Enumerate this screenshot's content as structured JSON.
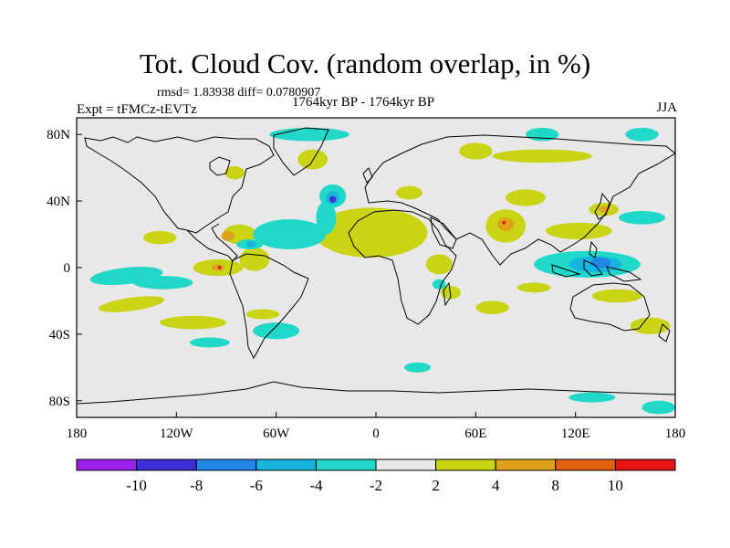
{
  "header": {
    "title": "Tot. Cloud Cov. (random overlap, in %)",
    "stats": "rmsd= 1.83938 diff= 0.0780907",
    "experiment": "Expt = tFMCz-tEVTz",
    "period": "1764kyr BP - 1764kyr BP",
    "season": "JJA"
  },
  "chart_data": {
    "type": "heatmap",
    "title": "Tot. Cloud Cov. (random overlap, in %)",
    "projection": "cylindrical equidistant",
    "xlim": [
      -180,
      180
    ],
    "ylim": [
      -90,
      90
    ],
    "x_ticks": [
      {
        "value": -180,
        "label": "180"
      },
      {
        "value": -120,
        "label": "120W"
      },
      {
        "value": -60,
        "label": "60W"
      },
      {
        "value": 0,
        "label": "0"
      },
      {
        "value": 60,
        "label": "60E"
      },
      {
        "value": 120,
        "label": "120E"
      },
      {
        "value": 180,
        "label": "180"
      }
    ],
    "y_ticks": [
      {
        "value": 80,
        "label": "80N"
      },
      {
        "value": 40,
        "label": "40N"
      },
      {
        "value": 0,
        "label": "0"
      },
      {
        "value": -40,
        "label": "40S"
      },
      {
        "value": -80,
        "label": "80S"
      }
    ],
    "colorbar": {
      "levels": [
        -10,
        -8,
        -6,
        -4,
        -2,
        2,
        4,
        8,
        10
      ],
      "colors": [
        "#9a1fe8",
        "#3a2fd8",
        "#1f86e6",
        "#18b4e0",
        "#1fd8c8",
        "#e8e8e8",
        "#c8d414",
        "#e0a21a",
        "#e26012",
        "#e51414"
      ],
      "labels": [
        "-10",
        "-8",
        "-6",
        "-4",
        "-2",
        "2",
        "4",
        "8",
        "10"
      ]
    },
    "features": [
      {
        "category": "4 to 8",
        "lon": -8,
        "lat": 24,
        "rx": 26,
        "ry": 10,
        "angle": 0
      },
      {
        "category": "2 to 4",
        "lon": -3,
        "lat": 21,
        "rx": 34,
        "ry": 15,
        "angle": 0
      },
      {
        "category": "2 to 4",
        "lon": 78,
        "lat": 25,
        "rx": 12,
        "ry": 10,
        "angle": 0
      },
      {
        "category": "4 to 8",
        "lon": 78,
        "lat": 26,
        "rx": 5,
        "ry": 4,
        "angle": 0
      },
      {
        "category": "> 10",
        "lon": 77,
        "lat": 27,
        "rx": 1,
        "ry": 1,
        "angle": 0
      },
      {
        "category": "2 to 4",
        "lon": -82,
        "lat": 20,
        "rx": 10,
        "ry": 6,
        "angle": 0
      },
      {
        "category": "4 to 8",
        "lon": -89,
        "lat": 19,
        "rx": 4,
        "ry": 3,
        "angle": 0
      },
      {
        "category": "2 to 4",
        "lon": -73,
        "lat": 5,
        "rx": 9,
        "ry": 7,
        "angle": 0
      },
      {
        "category": "2 to 4",
        "lon": -95,
        "lat": 0,
        "rx": 15,
        "ry": 5,
        "angle": 0
      },
      {
        "category": "4 to 8",
        "lon": -95,
        "lat": 0,
        "rx": 4,
        "ry": 2,
        "angle": 0
      },
      {
        "category": "> 10",
        "lon": -94,
        "lat": 0,
        "rx": 1,
        "ry": 1,
        "angle": 0
      },
      {
        "category": "2 to 4",
        "lon": -130,
        "lat": 18,
        "rx": 10,
        "ry": 4,
        "angle": 0
      },
      {
        "category": "2 to 4",
        "lon": 122,
        "lat": 22,
        "rx": 20,
        "ry": 5,
        "angle": 0
      },
      {
        "category": "2 to 4",
        "lon": 145,
        "lat": -17,
        "rx": 15,
        "ry": 4,
        "angle": 0
      },
      {
        "category": "2 to 4",
        "lon": -147,
        "lat": -22,
        "rx": 20,
        "ry": 4,
        "angle": -8
      },
      {
        "category": "2 to 4",
        "lon": -110,
        "lat": -33,
        "rx": 20,
        "ry": 4,
        "angle": 0
      },
      {
        "category": "2 to 4",
        "lon": -68,
        "lat": -28,
        "rx": 10,
        "ry": 3,
        "angle": 0
      },
      {
        "category": "2 to 4",
        "lon": -38,
        "lat": 65,
        "rx": 9,
        "ry": 6,
        "angle": 0
      },
      {
        "category": "2 to 4",
        "lon": 60,
        "lat": 70,
        "rx": 10,
        "ry": 5,
        "angle": 0
      },
      {
        "category": "2 to 4",
        "lon": 100,
        "lat": 67,
        "rx": 30,
        "ry": 4,
        "angle": 0
      },
      {
        "category": "2 to 4",
        "lon": 90,
        "lat": 42,
        "rx": 12,
        "ry": 5,
        "angle": 0
      },
      {
        "category": "2 to 4",
        "lon": 137,
        "lat": 35,
        "rx": 9,
        "ry": 4,
        "angle": 0
      },
      {
        "category": "4 to 8",
        "lon": 137,
        "lat": 35,
        "rx": 3,
        "ry": 2,
        "angle": 0
      },
      {
        "category": "2 to 4",
        "lon": 45,
        "lat": -15,
        "rx": 6,
        "ry": 4,
        "angle": 0
      },
      {
        "category": "2 to 4",
        "lon": 38,
        "lat": 2,
        "rx": 8,
        "ry": 6,
        "angle": 0
      },
      {
        "category": "2 to 4",
        "lon": 70,
        "lat": -24,
        "rx": 10,
        "ry": 4,
        "angle": 0
      },
      {
        "category": "2 to 4",
        "lon": 95,
        "lat": -12,
        "rx": 10,
        "ry": 3,
        "angle": 0
      },
      {
        "category": "2 to 4",
        "lon": -85,
        "lat": 57,
        "rx": 6,
        "ry": 4,
        "angle": 0
      },
      {
        "category": "2 to 4",
        "lon": 20,
        "lat": 45,
        "rx": 8,
        "ry": 4,
        "angle": 0
      },
      {
        "category": "2 to 4",
        "lon": 165,
        "lat": -35,
        "rx": 12,
        "ry": 5,
        "angle": 0
      },
      {
        "category": "-4 to -2",
        "lon": 127,
        "lat": 2,
        "rx": 32,
        "ry": 8,
        "angle": 0
      },
      {
        "category": "-6 to -4",
        "lon": 132,
        "lat": 2,
        "rx": 16,
        "ry": 5,
        "angle": 0
      },
      {
        "category": "-8 to -6",
        "lon": 135,
        "lat": 3,
        "rx": 6,
        "ry": 3,
        "angle": 0
      },
      {
        "category": "-4 to -2",
        "lon": -52,
        "lat": 20,
        "rx": 22,
        "ry": 9,
        "angle": 0
      },
      {
        "category": "-4 to -2",
        "lon": -30,
        "lat": 30,
        "rx": 6,
        "ry": 10,
        "angle": 0
      },
      {
        "category": "-4 to -2",
        "lon": -150,
        "lat": -5,
        "rx": 22,
        "ry": 5,
        "angle": -6
      },
      {
        "category": "-4 to -2",
        "lon": -128,
        "lat": -9,
        "rx": 18,
        "ry": 4,
        "angle": 0
      },
      {
        "category": "-4 to -2",
        "lon": -60,
        "lat": -38,
        "rx": 14,
        "ry": 5,
        "angle": 0
      },
      {
        "category": "-4 to -2",
        "lon": -40,
        "lat": 80,
        "rx": 24,
        "ry": 4,
        "angle": 0
      },
      {
        "category": "-4 to -2",
        "lon": -26,
        "lat": 43,
        "rx": 8,
        "ry": 7,
        "angle": 0
      },
      {
        "category": "-6 to -4",
        "lon": -26,
        "lat": 42,
        "rx": 4,
        "ry": 4,
        "angle": 0
      },
      {
        "category": "-10 to -8",
        "lon": -26,
        "lat": 41,
        "rx": 2,
        "ry": 2,
        "angle": 0
      },
      {
        "category": "-4 to -2",
        "lon": -76,
        "lat": 14,
        "rx": 8,
        "ry": 3,
        "angle": 0
      },
      {
        "category": "-6 to -4",
        "lon": -75,
        "lat": 14,
        "rx": 3,
        "ry": 2,
        "angle": 0
      },
      {
        "category": "-4 to -2",
        "lon": 100,
        "lat": 80,
        "rx": 10,
        "ry": 4,
        "angle": 0
      },
      {
        "category": "-4 to -2",
        "lon": 160,
        "lat": 80,
        "rx": 10,
        "ry": 4,
        "angle": 0
      },
      {
        "category": "-4 to -2",
        "lon": 170,
        "lat": -84,
        "rx": 10,
        "ry": 4,
        "angle": 0
      },
      {
        "category": "-4 to -2",
        "lon": 130,
        "lat": -78,
        "rx": 14,
        "ry": 3,
        "angle": 0
      },
      {
        "category": "-4 to -2",
        "lon": 160,
        "lat": 30,
        "rx": 14,
        "ry": 4,
        "angle": 0
      },
      {
        "category": "-4 to -2",
        "lon": 38,
        "lat": -10,
        "rx": 4,
        "ry": 3,
        "angle": 0
      },
      {
        "category": "-4 to -2",
        "lon": -100,
        "lat": -45,
        "rx": 12,
        "ry": 3,
        "angle": 0
      },
      {
        "category": "-4 to -2",
        "lon": 25,
        "lat": -60,
        "rx": 8,
        "ry": 3,
        "angle": 0
      }
    ]
  }
}
